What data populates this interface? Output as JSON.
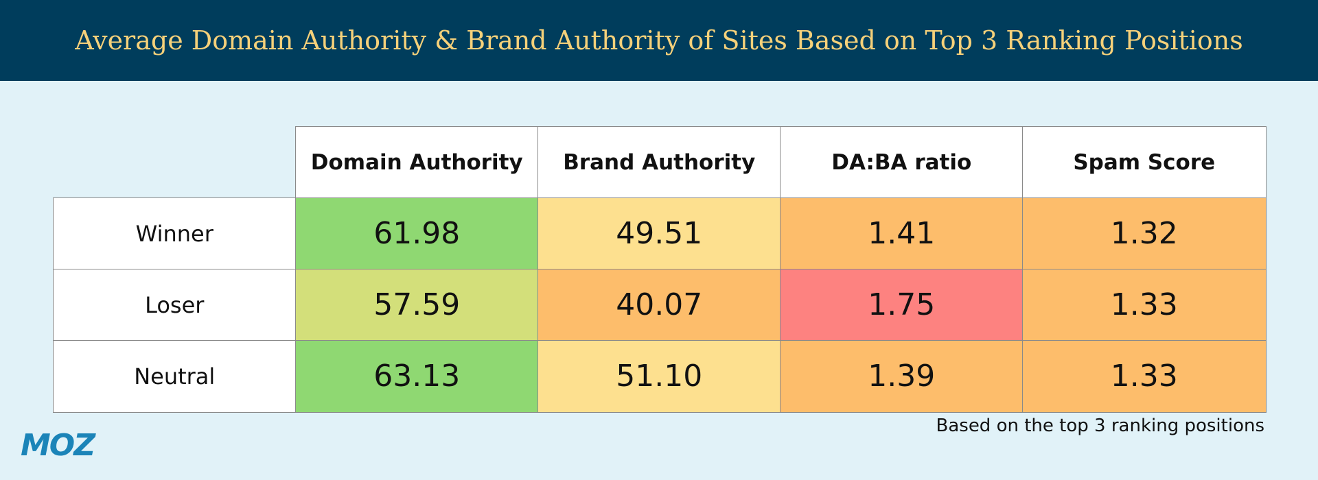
{
  "header": {
    "title": "Average Domain Authority & Brand Authority of Sites Based on Top 3 Ranking Positions"
  },
  "table": {
    "columns": [
      "Domain Authority",
      "Brand Authority",
      "DA:BA ratio",
      "Spam Score"
    ],
    "rows": [
      {
        "label": "Winner",
        "cells": [
          "61.98",
          "49.51",
          "1.41",
          "1.32"
        ],
        "colors": [
          "#8fd872",
          "#fde08f",
          "#fdbd6b",
          "#fdbd6b"
        ]
      },
      {
        "label": "Loser",
        "cells": [
          "57.59",
          "40.07",
          "1.75",
          "1.33"
        ],
        "colors": [
          "#d3df7a",
          "#fdbd6b",
          "#fd8280",
          "#fdbd6b"
        ]
      },
      {
        "label": "Neutral",
        "cells": [
          "63.13",
          "51.10",
          "1.39",
          "1.33"
        ],
        "colors": [
          "#8fd872",
          "#fde08f",
          "#fdbd6b",
          "#fdbd6b"
        ]
      }
    ]
  },
  "footnote": "Based on the top 3 ranking positions",
  "logo": "MOZ"
}
